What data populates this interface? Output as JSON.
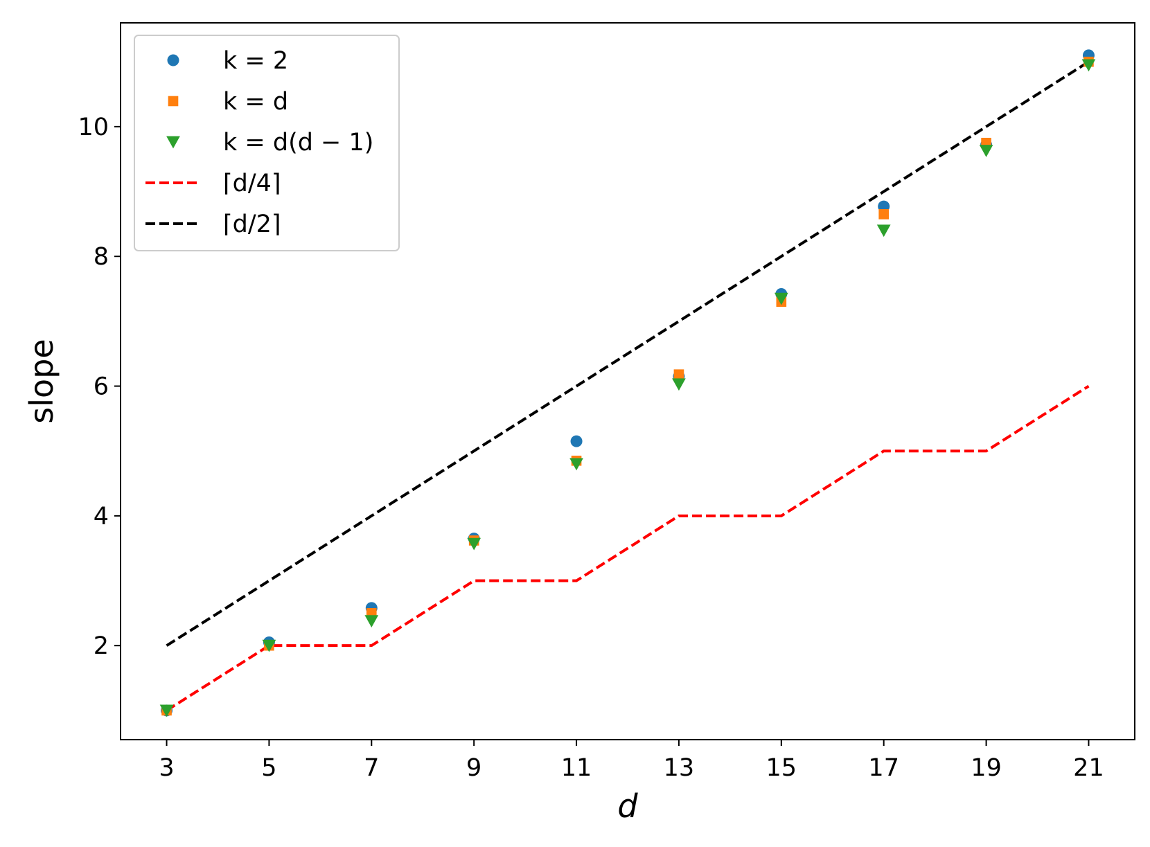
{
  "chart_data": {
    "type": "scatter",
    "xlabel": "d",
    "ylabel": "slope",
    "xlim": [
      2.1,
      21.9
    ],
    "ylim": [
      0.55,
      11.6
    ],
    "xticks": [
      3,
      5,
      7,
      9,
      11,
      13,
      15,
      17,
      19,
      21
    ],
    "yticks": [
      2,
      4,
      6,
      8,
      10
    ],
    "grid": false,
    "legend_position": "top-left",
    "colors": {
      "k2": "#1f77b4",
      "kd": "#ff7f0e",
      "kdd1": "#2ca02c",
      "d4": "#ff0000",
      "d2": "#000000"
    },
    "series": [
      {
        "name": "k = 2",
        "kind": "scatter",
        "marker": "circle",
        "color": "#1f77b4",
        "x": [
          3,
          5,
          7,
          9,
          11,
          13,
          15,
          17,
          19,
          21
        ],
        "y": [
          1.0,
          2.05,
          2.58,
          3.65,
          5.15,
          6.15,
          7.42,
          8.77,
          9.72,
          11.1
        ]
      },
      {
        "name": "k = d",
        "kind": "scatter",
        "marker": "square",
        "color": "#ff7f0e",
        "x": [
          3,
          5,
          7,
          9,
          11,
          13,
          15,
          17,
          19,
          21
        ],
        "y": [
          1.0,
          2.0,
          2.5,
          3.62,
          4.85,
          6.18,
          7.3,
          8.65,
          9.75,
          11.0
        ]
      },
      {
        "name": "k = d(d − 1)",
        "kind": "scatter",
        "marker": "triangle-down",
        "color": "#2ca02c",
        "x": [
          3,
          5,
          7,
          9,
          11,
          13,
          15,
          17,
          19,
          21
        ],
        "y": [
          1.0,
          2.0,
          2.38,
          3.57,
          4.8,
          6.03,
          7.35,
          8.4,
          9.63,
          10.95
        ]
      },
      {
        "name": "⌈d/4⌉",
        "kind": "line",
        "dash": "dashed",
        "color": "#ff0000",
        "x": [
          3,
          5,
          7,
          9,
          11,
          13,
          15,
          17,
          19,
          21
        ],
        "y": [
          1,
          2,
          2,
          3,
          3,
          4,
          4,
          5,
          5,
          6
        ]
      },
      {
        "name": "⌈d/2⌉",
        "kind": "line",
        "dash": "dashed",
        "color": "#000000",
        "x": [
          3,
          5,
          7,
          9,
          11,
          13,
          15,
          17,
          19,
          21
        ],
        "y": [
          2,
          3,
          4,
          5,
          6,
          7,
          8,
          9,
          10,
          11
        ]
      }
    ]
  }
}
